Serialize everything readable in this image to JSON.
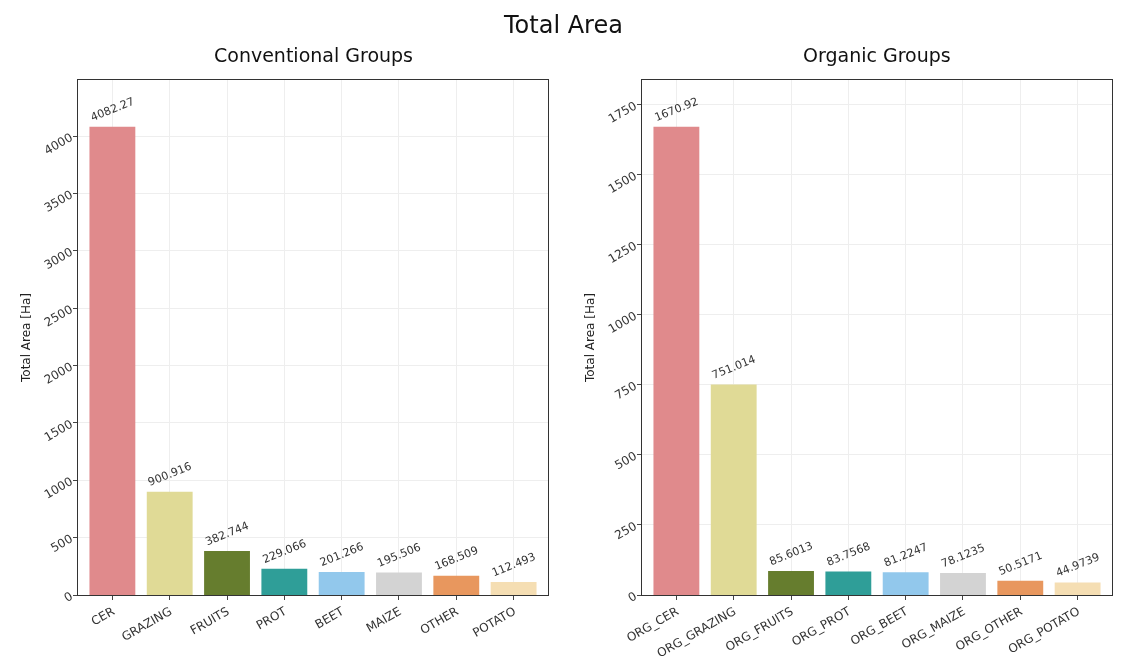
{
  "chart_data": [
    {
      "type": "bar",
      "title": "Conventional Groups",
      "annotations": [
        "Total Area"
      ],
      "ylabel": "Total Area [Ha]",
      "categories": [
        "CER",
        "GRAZING",
        "FRUITS",
        "PROT",
        "BEET",
        "MAIZE",
        "OTHER",
        "POTATO"
      ],
      "values": [
        4082.27,
        900.916,
        382.744,
        229.066,
        201.266,
        195.506,
        168.509,
        112.493
      ],
      "colors": [
        "#e08a8c",
        "#e0da96",
        "#667d2e",
        "#2f9e98",
        "#92c8ec",
        "#d3d3d3",
        "#e8975e",
        "#f5deb3"
      ],
      "ylim": [
        0,
        4490
      ],
      "yticks": [
        0,
        500,
        1000,
        1500,
        2000,
        2500,
        3000,
        3500,
        4000
      ],
      "grid": true,
      "data_labels": true
    },
    {
      "type": "bar",
      "title": "Organic Groups",
      "ylabel": "Total Area [Ha]",
      "categories": [
        "ORG_CER",
        "ORG_GRAZING",
        "ORG_FRUITS",
        "ORG_PROT",
        "ORG_BEET",
        "ORG_MAIZE",
        "ORG_OTHER",
        "ORG_POTATO"
      ],
      "values": [
        1670.92,
        751.014,
        85.6013,
        83.7568,
        81.2247,
        78.1235,
        50.5171,
        44.9739
      ],
      "colors": [
        "#e08a8c",
        "#e0da96",
        "#667d2e",
        "#2f9e98",
        "#92c8ec",
        "#d3d3d3",
        "#e8975e",
        "#f5deb3"
      ],
      "ylim": [
        0,
        1838
      ],
      "yticks": [
        0,
        250,
        500,
        750,
        1000,
        1250,
        1500,
        1750
      ],
      "grid": true,
      "data_labels": true
    }
  ]
}
